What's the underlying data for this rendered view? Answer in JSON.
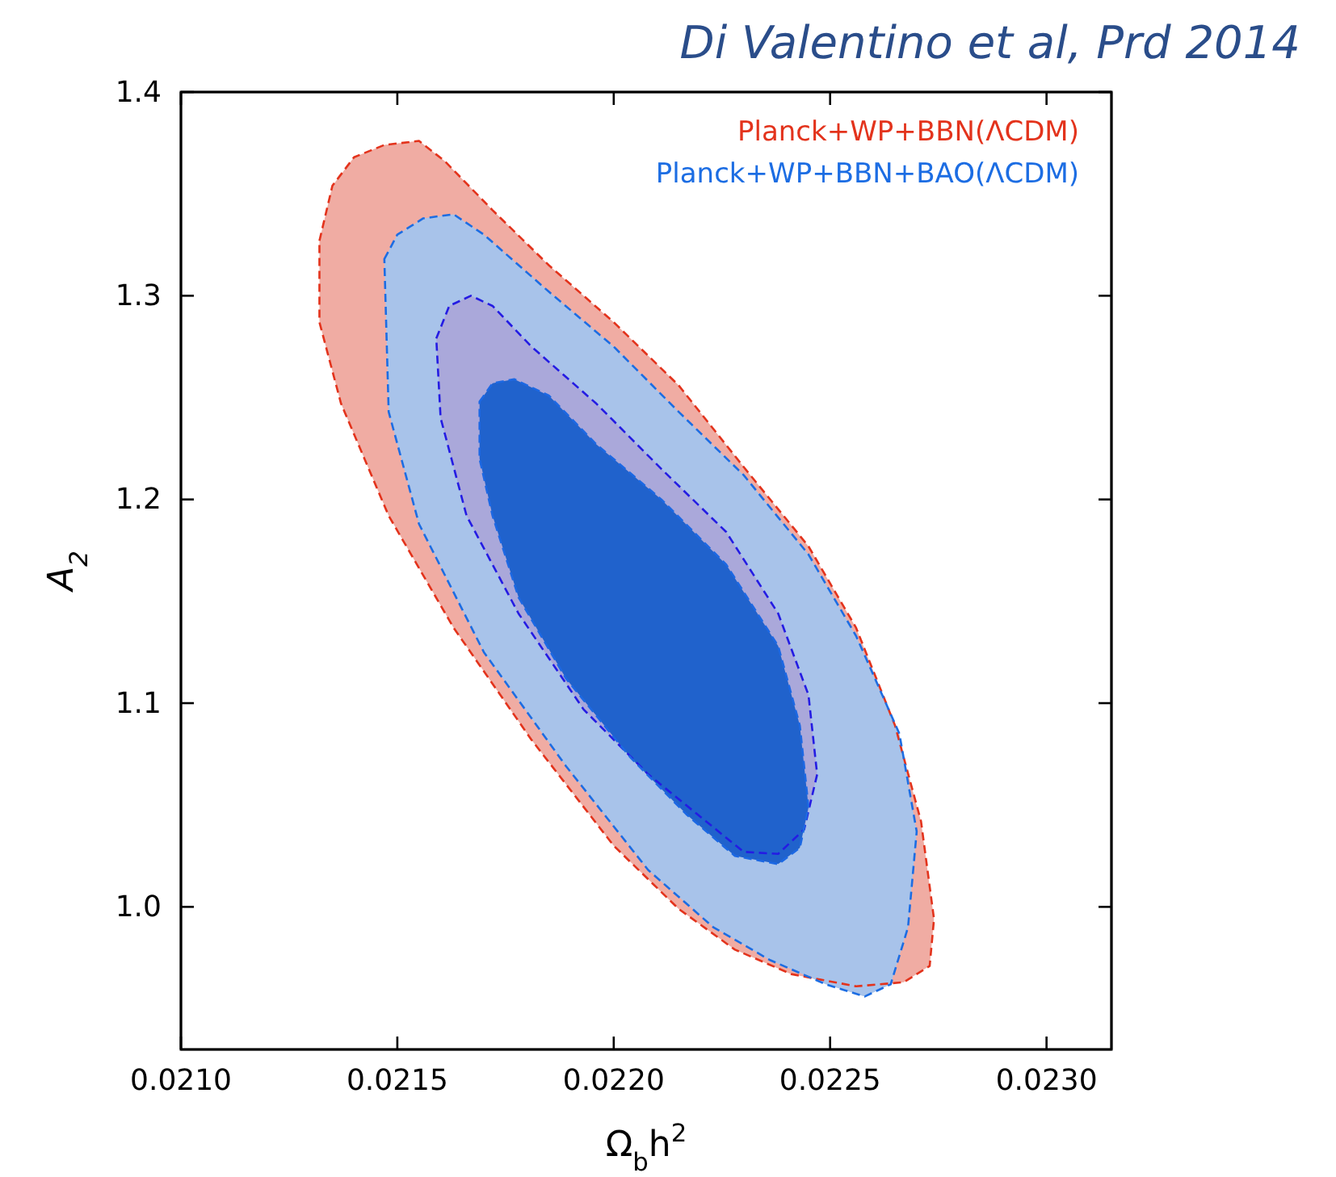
{
  "chart_data": {
    "type": "area",
    "xlabel": "Ω$_{b}$h$^{2}$",
    "ylabel": "A$_{2}$",
    "annotations": [
      "Di Valentino et al, Prd 2014"
    ],
    "xlim": [
      0.021,
      0.02315
    ],
    "ylim": [
      0.93,
      1.4
    ],
    "xticks": [
      {
        "value": 0.021,
        "label": "0.0210"
      },
      {
        "value": 0.0215,
        "label": "0.0215"
      },
      {
        "value": 0.022,
        "label": "0.0220"
      },
      {
        "value": 0.0225,
        "label": "0.0225"
      },
      {
        "value": 0.023,
        "label": "0.0230"
      }
    ],
    "yticks": [
      {
        "value": 1.0,
        "label": "1.0"
      },
      1.1,
      1.2,
      1.3,
      1.4
    ],
    "legend": "top right",
    "line_style": "dashed",
    "grid": false,
    "series": [
      {
        "name": "Planck+WP+BBN(ΛCDM)",
        "color": "#f0aca3",
        "x": [
          0.02132,
          0.02135,
          0.0214,
          0.02147,
          0.02155,
          0.02161,
          0.02172,
          0.02185,
          0.022,
          0.02215,
          0.0223,
          0.02245,
          0.02256,
          0.02265,
          0.02271,
          0.02274,
          0.02273,
          0.02267,
          0.02256,
          0.02241,
          0.02228,
          0.02215,
          0.022,
          0.02181,
          0.02163,
          0.02148,
          0.02137,
          0.02132
        ],
        "values": [
          1.327,
          1.354,
          1.368,
          1.374,
          1.376,
          1.366,
          1.342,
          1.315,
          1.287,
          1.256,
          1.216,
          1.177,
          1.137,
          1.089,
          1.042,
          0.994,
          0.971,
          0.963,
          0.961,
          0.967,
          0.979,
          0.999,
          1.03,
          1.082,
          1.137,
          1.192,
          1.247,
          1.287
        ]
      },
      {
        "name": "Planck+WP+BBN+BAO(ΛCDM)",
        "color": "#a8c3ea",
        "x": [
          0.02147,
          0.0215,
          0.02156,
          0.02163,
          0.0217,
          0.02185,
          0.022,
          0.02215,
          0.0223,
          0.02245,
          0.02256,
          0.02266,
          0.0227,
          0.02268,
          0.02264,
          0.02258,
          0.02249,
          0.02236,
          0.02223,
          0.02208,
          0.02189,
          0.0217,
          0.02155,
          0.02148
        ],
        "values": [
          1.318,
          1.33,
          1.338,
          1.34,
          1.33,
          1.302,
          1.275,
          1.243,
          1.212,
          1.173,
          1.133,
          1.085,
          1.037,
          0.99,
          0.962,
          0.956,
          0.962,
          0.974,
          0.99,
          1.018,
          1.069,
          1.125,
          1.188,
          1.243
        ]
      },
      {
        "color": "#aaa8da",
        "x": [
          0.02159,
          0.02162,
          0.02167,
          0.02172,
          0.02181,
          0.02196,
          0.02211,
          0.02226,
          0.02238,
          0.02245,
          0.02247,
          0.02244,
          0.02238,
          0.0223,
          0.02219,
          0.02208,
          0.02193,
          0.02178,
          0.02166,
          0.0216
        ],
        "values": [
          1.279,
          1.295,
          1.3,
          1.295,
          1.275,
          1.247,
          1.215,
          1.184,
          1.144,
          1.104,
          1.065,
          1.038,
          1.026,
          1.027,
          1.046,
          1.065,
          1.097,
          1.144,
          1.192,
          1.24
        ]
      },
      {
        "color": "#2062cc",
        "x": [
          0.02169,
          0.02172,
          0.02177,
          0.02185,
          0.02196,
          0.02211,
          0.02226,
          0.02238,
          0.02243,
          0.02245,
          0.02243,
          0.02238,
          0.02228,
          0.02217,
          0.02204,
          0.02189,
          0.02178,
          0.02172,
          0.02169
        ],
        "values": [
          1.248,
          1.257,
          1.259,
          1.251,
          1.227,
          1.2,
          1.168,
          1.128,
          1.089,
          1.049,
          1.029,
          1.021,
          1.025,
          1.045,
          1.073,
          1.112,
          1.152,
          1.192,
          1.22
        ]
      }
    ]
  }
}
